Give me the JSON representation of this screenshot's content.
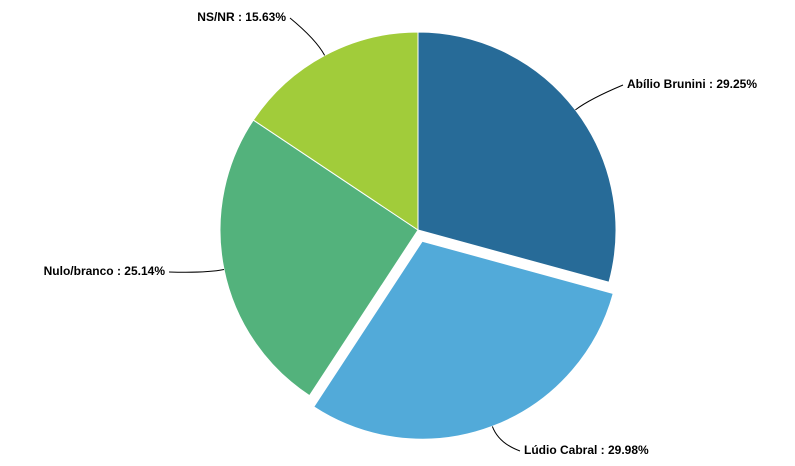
{
  "chart_data": {
    "type": "pie",
    "values": [
      29.25,
      29.98,
      25.14,
      15.63
    ],
    "value_labels": [
      "Abílio Brunini : 29.25%",
      "Lúdio Cabral : 29.98%",
      "Nulo/branco : 25.14%",
      "NS/NR : 15.63%"
    ],
    "colors": [
      "#276b98",
      "#52aad9",
      "#53b27c",
      "#a1cc3a"
    ],
    "exploded": [
      false,
      true,
      false,
      false
    ]
  }
}
